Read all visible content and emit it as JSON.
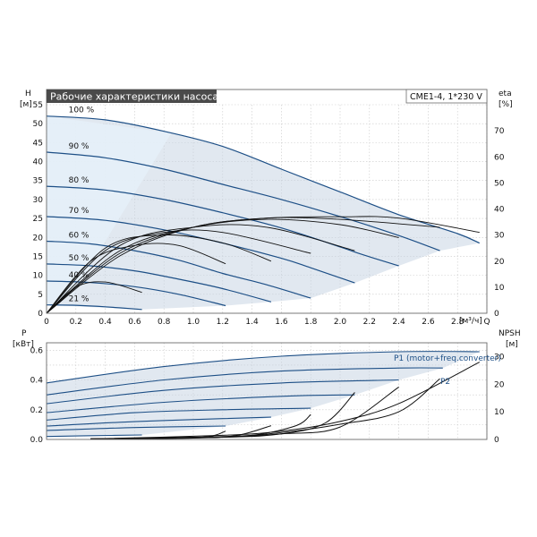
{
  "colors": {
    "curve": "#1d4f86",
    "region": "#c8d6e4",
    "region_light": "#e6eff8",
    "header_bg": "#4a4a4a",
    "efficiency": "#111111",
    "grid": "#c9c9c9"
  },
  "chart_data": [
    {
      "type": "line",
      "title": "Рабочие характеристики насоса",
      "model": "CME1-4, 1*230 V",
      "ylabel_left": "H",
      "ylabel_left_unit": "[м]",
      "ylabel_right": "eta",
      "ylabel_right_unit": "[%]",
      "xlabel": "Q",
      "xlabel_unit": "[м³/ч]",
      "xlim": [
        0,
        3.0
      ],
      "ylim": [
        0,
        55
      ],
      "yright_lim": [
        0,
        80
      ],
      "grid": true,
      "x_ticks": [
        "0",
        "0.2",
        "0.4",
        "0.6",
        "0.8",
        "1.0",
        "1.2",
        "1.4",
        "1.6",
        "1.8",
        "2.0",
        "2.2",
        "2.4",
        "2.6",
        "2.8",
        "Q"
      ],
      "y_ticks": [
        "0",
        "5",
        "10",
        "15",
        "20",
        "25",
        "30",
        "35",
        "40",
        "45",
        "50",
        "55"
      ],
      "yright_ticks": [
        "0",
        "10",
        "20",
        "30",
        "40",
        "50",
        "60",
        "70"
      ],
      "speed_curves": [
        {
          "label": "100 %",
          "x": [
            0,
            0.4,
            0.8,
            1.2,
            1.6,
            2.0,
            2.4,
            2.8,
            2.95
          ],
          "y": [
            52,
            51,
            48,
            44,
            38,
            32,
            26,
            21,
            18.5
          ]
        },
        {
          "label": "90 %",
          "x": [
            0,
            0.4,
            0.8,
            1.2,
            1.6,
            2.0,
            2.4,
            2.68
          ],
          "y": [
            42.5,
            41,
            38,
            34,
            30,
            25.5,
            20.5,
            16.5
          ]
        },
        {
          "label": "80 %",
          "x": [
            0,
            0.4,
            0.8,
            1.2,
            1.6,
            2.0,
            2.15,
            2.4
          ],
          "y": [
            33.5,
            32.5,
            30,
            26.5,
            22.5,
            17.5,
            15.5,
            12.5
          ]
        },
        {
          "label": "70 %",
          "x": [
            0,
            0.4,
            0.8,
            1.2,
            1.6,
            1.8,
            2.1
          ],
          "y": [
            25.5,
            24.5,
            22,
            18.5,
            14.5,
            12,
            8
          ]
        },
        {
          "label": "60 %",
          "x": [
            0,
            0.3,
            0.6,
            0.9,
            1.2,
            1.5,
            1.8
          ],
          "y": [
            19,
            18.3,
            16.5,
            14,
            10.5,
            7.5,
            4
          ]
        },
        {
          "label": "50 %",
          "x": [
            0,
            0.3,
            0.6,
            0.9,
            1.2,
            1.53
          ],
          "y": [
            13,
            12.5,
            11.2,
            9,
            6.5,
            3
          ]
        },
        {
          "label": "40 %",
          "x": [
            0,
            0.3,
            0.6,
            0.9,
            1.22
          ],
          "y": [
            8.5,
            8.1,
            7,
            5,
            2
          ]
        },
        {
          "label": "21 %",
          "x": [
            0,
            0.2,
            0.4,
            0.65
          ],
          "y": [
            2.2,
            2.1,
            1.7,
            1
          ]
        }
      ],
      "efficiency_curves": [
        {
          "x": [
            0,
            0.5,
            1.0,
            1.5,
            2.0,
            2.4,
            2.95
          ],
          "y": [
            0,
            22,
            33,
            36.5,
            37,
            36.5,
            31
          ]
        },
        {
          "x": [
            0,
            0.5,
            1.0,
            1.5,
            2.0,
            2.68
          ],
          "y": [
            0,
            23,
            33,
            36.5,
            36,
            33
          ]
        },
        {
          "x": [
            0,
            0.5,
            1.0,
            1.5,
            2.0,
            2.4
          ],
          "y": [
            0,
            24,
            33,
            36,
            34,
            29
          ]
        },
        {
          "x": [
            0,
            0.5,
            1.0,
            1.5,
            2.1
          ],
          "y": [
            0,
            26,
            33,
            33,
            24
          ]
        },
        {
          "x": [
            0,
            0.4,
            0.8,
            1.2,
            1.8
          ],
          "y": [
            0,
            24,
            31,
            31,
            23
          ]
        },
        {
          "x": [
            0,
            0.4,
            0.8,
            1.2,
            1.53
          ],
          "y": [
            0,
            25,
            30,
            27,
            20
          ]
        },
        {
          "x": [
            0,
            0.3,
            0.6,
            0.9,
            1.22
          ],
          "y": [
            0,
            20,
            26,
            26,
            19
          ]
        },
        {
          "x": [
            0,
            0.2,
            0.4,
            0.65
          ],
          "y": [
            0,
            10,
            12,
            8
          ]
        }
      ]
    },
    {
      "type": "line",
      "ylabel_left": "P",
      "ylabel_left_unit": "[кВт]",
      "ylabel_right": "NPSH",
      "ylabel_right_unit": "[м]",
      "xlim": [
        0,
        3.0
      ],
      "ylim": [
        0,
        0.65
      ],
      "yright_lim": [
        0,
        35
      ],
      "grid": true,
      "y_ticks": [
        "0.0",
        "0.2",
        "0.4",
        "0.6"
      ],
      "yright_ticks": [
        "0",
        "10",
        "20",
        "30"
      ],
      "legend": [
        "P1 (motor+freq.converter)",
        "P2"
      ],
      "power_curves": [
        {
          "x": [
            0,
            0.8,
            1.6,
            2.4,
            2.95
          ],
          "y": [
            0.38,
            0.49,
            0.56,
            0.59,
            0.59
          ]
        },
        {
          "x": [
            0,
            0.8,
            1.6,
            2.4,
            2.7
          ],
          "y": [
            0.3,
            0.4,
            0.46,
            0.48,
            0.48
          ]
        },
        {
          "x": [
            0,
            0.8,
            1.6,
            2.4
          ],
          "y": [
            0.24,
            0.33,
            0.38,
            0.4
          ]
        },
        {
          "x": [
            0,
            0.8,
            1.6,
            2.1
          ],
          "y": [
            0.18,
            0.25,
            0.29,
            0.3
          ]
        },
        {
          "x": [
            0,
            0.6,
            1.2,
            1.8
          ],
          "y": [
            0.13,
            0.18,
            0.2,
            0.21
          ]
        },
        {
          "x": [
            0,
            0.6,
            1.2,
            1.53
          ],
          "y": [
            0.09,
            0.12,
            0.14,
            0.15
          ]
        },
        {
          "x": [
            0,
            0.6,
            1.22
          ],
          "y": [
            0.06,
            0.08,
            0.09
          ]
        },
        {
          "x": [
            0,
            0.3,
            0.65
          ],
          "y": [
            0.02,
            0.025,
            0.03
          ]
        }
      ],
      "npsh_curves": [
        {
          "x": [
            0.3,
            1.2,
            1.6,
            2.0,
            2.4,
            2.95
          ],
          "y": [
            0.2,
            1.5,
            3,
            6.5,
            13,
            28
          ]
        },
        {
          "x": [
            0.3,
            1.2,
            1.6,
            2.0,
            2.4,
            2.68
          ],
          "y": [
            0.2,
            1,
            2.5,
            5.5,
            10,
            22
          ]
        },
        {
          "x": [
            0.3,
            1.2,
            1.6,
            2.0,
            2.4
          ],
          "y": [
            0.2,
            1,
            2,
            4.5,
            19
          ]
        },
        {
          "x": [
            0.3,
            1.2,
            1.6,
            1.9,
            2.1
          ],
          "y": [
            0.2,
            0.8,
            2,
            6,
            17
          ]
        },
        {
          "x": [
            0.3,
            1.0,
            1.4,
            1.7,
            1.8
          ],
          "y": [
            0.2,
            0.6,
            1.5,
            5,
            9
          ]
        },
        {
          "x": [
            0.3,
            1.0,
            1.3,
            1.53
          ],
          "y": [
            0.2,
            0.5,
            1.5,
            5
          ]
        },
        {
          "x": [
            0.3,
            0.8,
            1.1,
            1.22
          ],
          "y": [
            0.2,
            0.4,
            1,
            3
          ]
        }
      ]
    }
  ]
}
